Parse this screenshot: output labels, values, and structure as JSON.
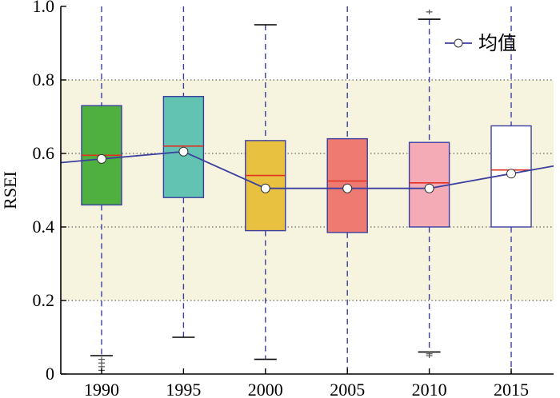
{
  "chart_data": {
    "type": "box",
    "title": "",
    "xlabel": "",
    "ylabel": "RSEI",
    "ylim": [
      0,
      1.0
    ],
    "categories": [
      "1990",
      "1995",
      "2000",
      "2005",
      "2010",
      "2015"
    ],
    "y_ticks": [
      "0",
      "0.2",
      "0.4",
      "0.6",
      "0.8",
      "1.0"
    ],
    "shaded_band": [
      0.2,
      0.8
    ],
    "grid": "dotted horizontal",
    "legend": {
      "label": "均值",
      "position": "top-right"
    },
    "boxes": [
      {
        "category": "1990",
        "whisker_low": 0.05,
        "q1": 0.46,
        "median": 0.595,
        "q3": 0.73,
        "whisker_high": 1.0,
        "mean": 0.585,
        "outliers_low": [
          0.04,
          0.03,
          0.02,
          0.01
        ],
        "outliers_high": [],
        "color": "#4faf3f"
      },
      {
        "category": "1995",
        "whisker_low": 0.1,
        "q1": 0.48,
        "median": 0.62,
        "q3": 0.755,
        "whisker_high": 1.0,
        "mean": 0.605,
        "outliers_low": [],
        "outliers_high": [],
        "color": "#63c3b3"
      },
      {
        "category": "2000",
        "whisker_low": 0.04,
        "q1": 0.39,
        "median": 0.54,
        "q3": 0.635,
        "whisker_high": 0.95,
        "mean": 0.505,
        "outliers_low": [],
        "outliers_high": [],
        "color": "#e8c140"
      },
      {
        "category": "2005",
        "whisker_low": 0.0,
        "q1": 0.385,
        "median": 0.525,
        "q3": 0.64,
        "whisker_high": 1.0,
        "mean": 0.505,
        "outliers_low": [],
        "outliers_high": [],
        "color": "#ee7b72"
      },
      {
        "category": "2010",
        "whisker_low": 0.06,
        "q1": 0.4,
        "median": 0.52,
        "q3": 0.63,
        "whisker_high": 0.965,
        "mean": 0.505,
        "outliers_low": [
          0.055,
          0.05
        ],
        "outliers_high": [
          0.985
        ],
        "color": "#f4abb6"
      },
      {
        "category": "2015",
        "whisker_low": 0.0,
        "q1": 0.4,
        "median": 0.555,
        "q3": 0.675,
        "whisker_high": 1.0,
        "mean": 0.545,
        "outliers_low": [],
        "outliers_high": [],
        "color": "#ffffff"
      }
    ],
    "mean_line": {
      "name": "均值",
      "values": [
        0.585,
        0.605,
        0.505,
        0.505,
        0.505,
        0.545
      ],
      "color": "#3a3fa0"
    },
    "colors": {
      "band": "#f6f3df",
      "median": "#e03020",
      "whisker": "#3a3fa0",
      "box_edge": "#3a3fa0"
    }
  }
}
